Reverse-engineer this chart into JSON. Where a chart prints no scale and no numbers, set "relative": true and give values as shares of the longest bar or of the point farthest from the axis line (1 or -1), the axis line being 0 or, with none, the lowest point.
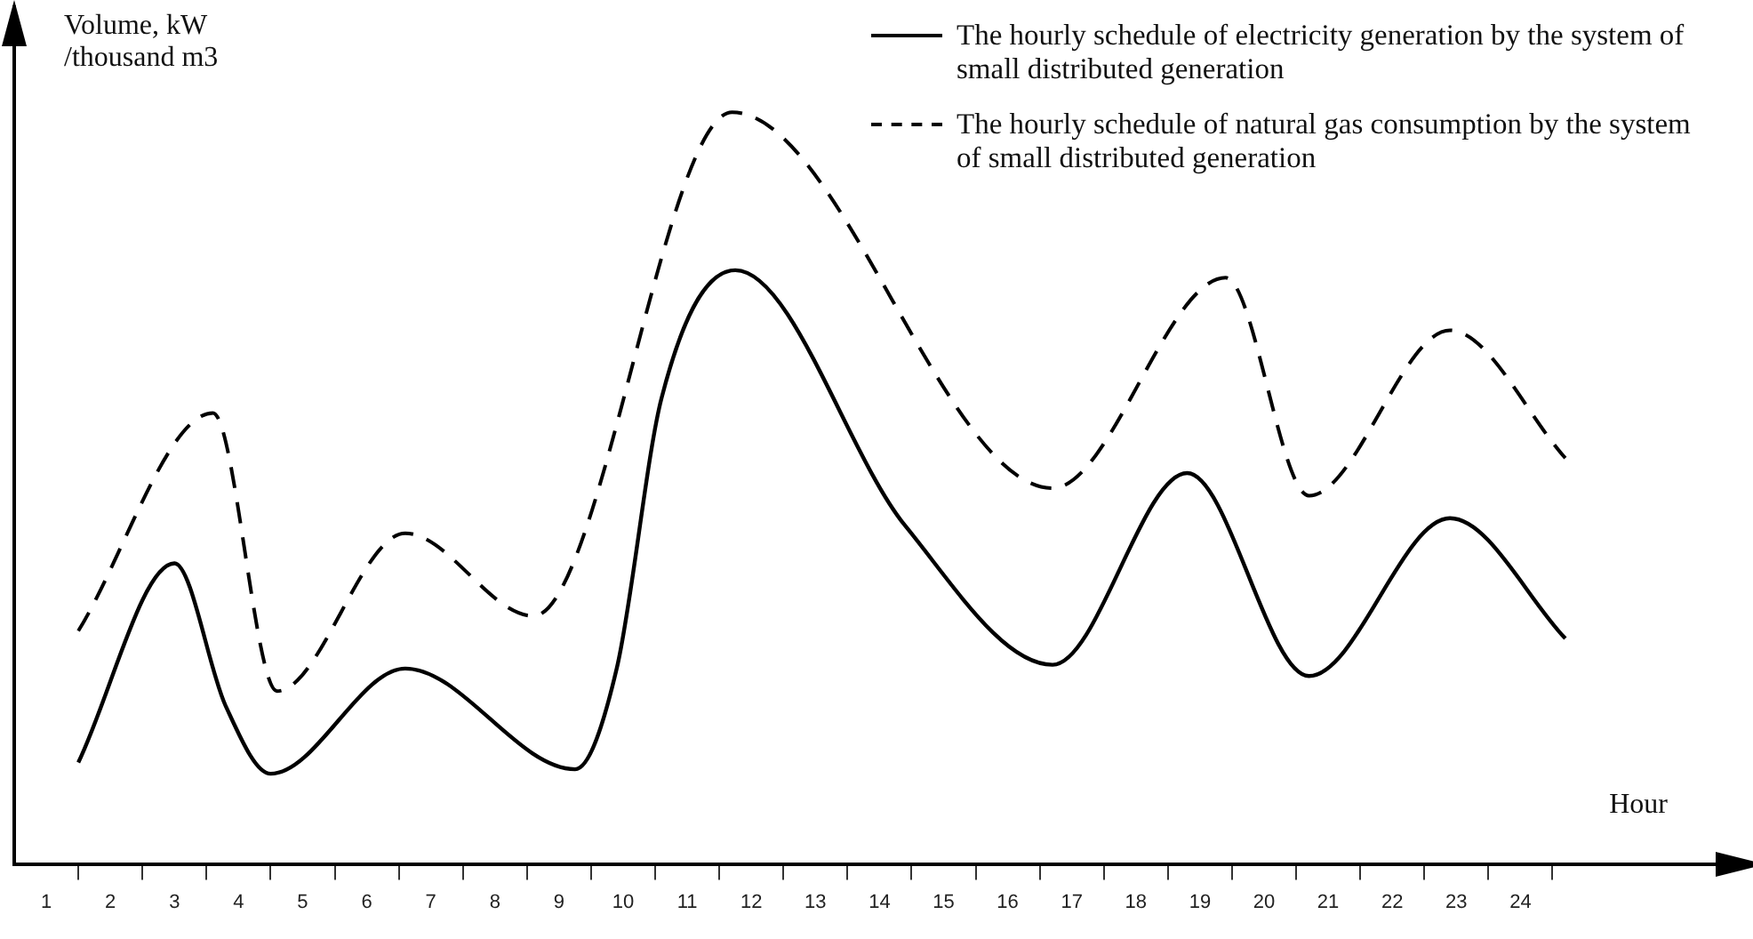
{
  "chart_data": {
    "type": "line",
    "relative": true,
    "ylabel": "Volume, kW\n/thousand m3",
    "xlabel": "Hour",
    "xlim": [
      0.5,
      27.6
    ],
    "xticks": [
      1,
      2,
      3,
      4,
      5,
      6,
      7,
      8,
      9,
      10,
      11,
      12,
      13,
      14,
      15,
      16,
      17,
      18,
      19,
      20,
      21,
      22,
      23,
      24,
      {
        "value": 1.5,
        "label": null
      },
      {
        "value": 2.5,
        "label": null
      },
      {
        "value": 3.5,
        "label": null
      },
      {
        "value": 4.5,
        "label": null
      },
      {
        "value": 5.5,
        "label": null
      },
      {
        "value": 6.5,
        "label": null
      },
      {
        "value": 7.5,
        "label": null
      },
      {
        "value": 8.5,
        "label": null
      },
      {
        "value": 9.5,
        "label": null
      },
      {
        "value": 10.5,
        "label": null
      },
      {
        "value": 11.5,
        "label": null
      },
      {
        "value": 12.5,
        "label": null
      },
      {
        "value": 13.5,
        "label": null
      },
      {
        "value": 14.5,
        "label": null
      },
      {
        "value": 15.5,
        "label": null
      },
      {
        "value": 16.5,
        "label": null
      },
      {
        "value": 17.5,
        "label": null
      },
      {
        "value": 18.5,
        "label": null
      },
      {
        "value": 19.5,
        "label": null
      },
      {
        "value": 20.5,
        "label": null
      },
      {
        "value": 21.5,
        "label": null
      },
      {
        "value": 22.5,
        "label": null
      },
      {
        "value": 23.5,
        "label": null
      },
      {
        "value": 24.5,
        "label": null
      }
    ],
    "tick_labels": "x",
    "grid": false,
    "legend": "top right",
    "marker": "none",
    "series": [
      {
        "name": "The hourly schedule of electricity generation by the system of small distributed generation",
        "color": "#000000",
        "line_style": "solid",
        "x": [
          1.5,
          3.0,
          3.8,
          4.5,
          6.6,
          9.25,
          9.9,
          10.6,
          11.75,
          14.4,
          16.7,
          18.8,
          20.7,
          22.9,
          24.7
        ],
        "values": [
          0.135,
          0.4,
          0.21,
          0.12,
          0.26,
          0.126,
          0.26,
          0.62,
          0.79,
          0.45,
          0.265,
          0.52,
          0.25,
          0.46,
          0.3
        ]
      },
      {
        "name": "The hourly schedule of natural gas consumption by the system of small distributed generation",
        "color": "#000000",
        "line_style": "dashed",
        "x": [
          1.5,
          3.6,
          4.6,
          6.6,
          8.6,
          11.7,
          16.7,
          19.4,
          20.7,
          22.9,
          24.7
        ],
        "values": [
          0.31,
          0.6,
          0.23,
          0.44,
          0.33,
          1,
          0.5,
          0.78,
          0.49,
          0.71,
          0.54
        ]
      }
    ]
  }
}
